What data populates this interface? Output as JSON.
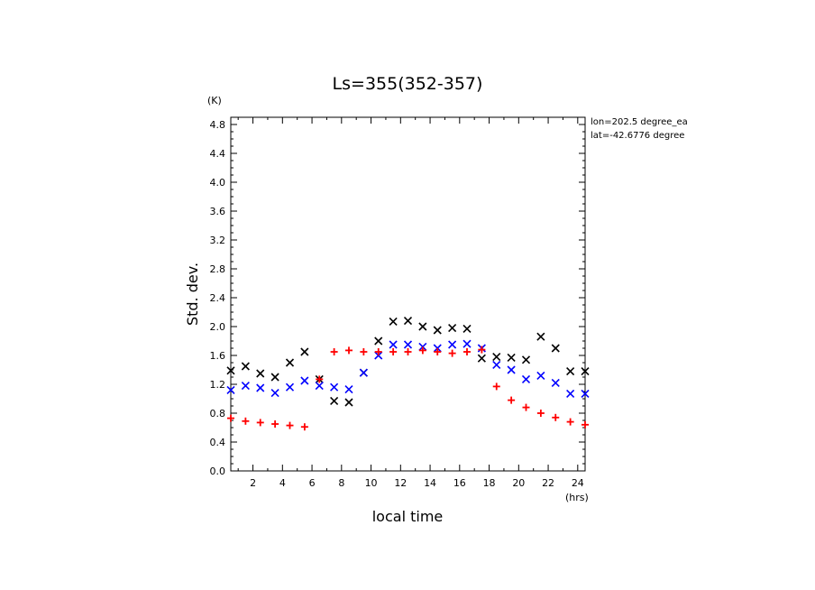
{
  "chart_data": {
    "type": "scatter",
    "title": "Ls=355(352-357)",
    "xlabel": "local time",
    "ylabel": "Std. dev.",
    "x_unit": "(hrs)",
    "y_unit": "(K)",
    "xlim": [
      0.5,
      24.5
    ],
    "ylim": [
      0.0,
      4.9
    ],
    "xticks": [
      2,
      4,
      6,
      8,
      10,
      12,
      14,
      16,
      18,
      20,
      22,
      24
    ],
    "yticks": [
      0.0,
      0.4,
      0.8,
      1.2,
      1.6,
      2.0,
      2.4,
      2.8,
      3.2,
      3.6,
      4.0,
      4.4,
      4.8
    ],
    "annotations": [
      "lon=202.5 degree_ea",
      "lat=-42.6776 degree"
    ],
    "grid": false,
    "series": [
      {
        "marker": "x",
        "color": "#000000",
        "x": [
          0.5,
          1.5,
          2.5,
          3.5,
          4.5,
          5.5,
          6.5,
          7.5,
          8.5,
          9.5,
          10.5,
          11.5,
          12.5,
          13.5,
          14.5,
          15.5,
          16.5,
          17.5,
          18.5,
          19.5,
          20.5,
          21.5,
          22.5,
          23.5,
          24.5
        ],
        "values": [
          1.39,
          1.45,
          1.35,
          1.3,
          1.5,
          1.65,
          1.27,
          0.97,
          0.95,
          1.36,
          1.8,
          2.07,
          2.08,
          2.0,
          1.95,
          1.98,
          1.97,
          1.56,
          1.58,
          1.57,
          1.54,
          1.86,
          1.7,
          1.38,
          1.38
        ]
      },
      {
        "marker": "x",
        "color": "#0000ff",
        "x": [
          0.5,
          1.5,
          2.5,
          3.5,
          4.5,
          5.5,
          6.5,
          7.5,
          8.5,
          9.5,
          10.5,
          11.5,
          12.5,
          13.5,
          14.5,
          15.5,
          16.5,
          17.5,
          18.5,
          19.5,
          20.5,
          21.5,
          22.5,
          23.5,
          24.5
        ],
        "values": [
          1.12,
          1.18,
          1.15,
          1.08,
          1.16,
          1.25,
          1.18,
          1.16,
          1.13,
          1.36,
          1.6,
          1.75,
          1.75,
          1.72,
          1.7,
          1.75,
          1.76,
          1.7,
          1.47,
          1.4,
          1.27,
          1.32,
          1.22,
          1.07,
          1.07
        ]
      },
      {
        "marker": "+",
        "color": "#ff0000",
        "x": [
          0.5,
          1.5,
          2.5,
          3.5,
          4.5,
          5.5,
          6.5,
          7.5,
          8.5,
          9.5,
          10.5,
          11.5,
          12.5,
          13.5,
          14.5,
          15.5,
          16.5,
          17.5,
          18.5,
          19.5,
          20.5,
          21.5,
          22.5,
          23.5,
          24.5
        ],
        "values": [
          0.73,
          0.69,
          0.67,
          0.65,
          0.63,
          0.61,
          1.27,
          1.65,
          1.67,
          1.65,
          1.65,
          1.65,
          1.65,
          1.67,
          1.65,
          1.63,
          1.65,
          1.68,
          1.17,
          0.98,
          0.88,
          0.8,
          0.74,
          0.68,
          0.64
        ]
      }
    ]
  }
}
